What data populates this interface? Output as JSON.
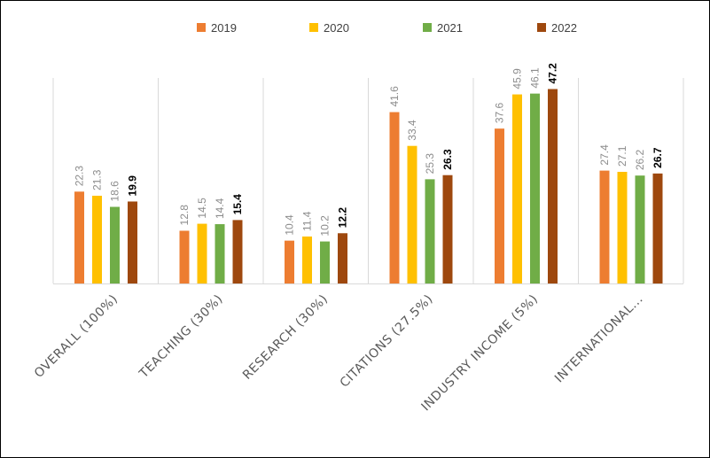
{
  "chart_data": {
    "type": "bar",
    "categories": [
      "OVERALL (100%)",
      "TEACHING (30%)",
      "RESEARCH (30%)",
      "CITATIONS (27.5%)",
      "INDUSTRY INCOME (5%)",
      "INTERNATIONAL..."
    ],
    "series": [
      {
        "name": "2019",
        "color": "#ED7D31",
        "values": [
          22.3,
          12.8,
          10.4,
          41.6,
          37.6,
          27.4
        ]
      },
      {
        "name": "2020",
        "color": "#FFC000",
        "values": [
          21.3,
          14.5,
          11.4,
          33.4,
          45.9,
          27.1
        ]
      },
      {
        "name": "2021",
        "color": "#70AD47",
        "values": [
          18.6,
          14.4,
          10.2,
          25.3,
          46.1,
          26.2
        ]
      },
      {
        "name": "2022",
        "color": "#9E480E",
        "values": [
          19.9,
          15.4,
          12.2,
          26.3,
          47.2,
          26.7
        ]
      }
    ],
    "value_label_style": {
      "2019": "grey",
      "2020": "grey",
      "2021": "grey",
      "2022": "bold-black"
    },
    "ylim": [
      0,
      50
    ],
    "grid": false,
    "legend_position": "top"
  }
}
